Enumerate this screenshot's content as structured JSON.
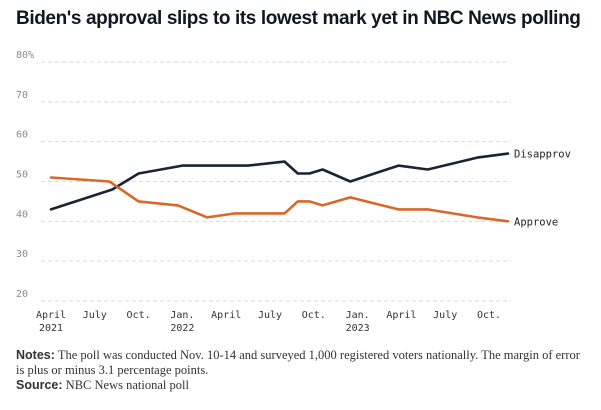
{
  "chart_data": {
    "type": "line",
    "title": "Biden's approval slips to its lowest mark yet in NBC News polling",
    "y_ticks": [
      "80%",
      "70",
      "60",
      "50",
      "40",
      "30",
      "20"
    ],
    "y_tick_values": [
      80,
      70,
      60,
      50,
      40,
      30,
      20
    ],
    "ylim": [
      20,
      80
    ],
    "x_ticks": [
      {
        "label": "April",
        "sublabel": "2021"
      },
      {
        "label": "July",
        "sublabel": ""
      },
      {
        "label": "Oct.",
        "sublabel": ""
      },
      {
        "label": "Jan.",
        "sublabel": "2022"
      },
      {
        "label": "April",
        "sublabel": ""
      },
      {
        "label": "July",
        "sublabel": ""
      },
      {
        "label": "Oct.",
        "sublabel": ""
      },
      {
        "label": "Jan.",
        "sublabel": "2023"
      },
      {
        "label": "April",
        "sublabel": ""
      },
      {
        "label": "July",
        "sublabel": ""
      },
      {
        "label": "Oct.",
        "sublabel": ""
      }
    ],
    "x_tick_months": [
      0,
      3,
      6,
      9,
      12,
      15,
      18,
      21,
      24,
      27,
      30
    ],
    "xlim": [
      0,
      31.3
    ],
    "series": [
      {
        "name": "Disapprove",
        "label": "Disapprov",
        "color": "#1a2533",
        "points": [
          {
            "x": 0,
            "y": 43
          },
          {
            "x": 4.2,
            "y": 48
          },
          {
            "x": 6,
            "y": 52
          },
          {
            "x": 9,
            "y": 54
          },
          {
            "x": 12,
            "y": 54
          },
          {
            "x": 13.5,
            "y": 54
          },
          {
            "x": 16,
            "y": 55
          },
          {
            "x": 16.9,
            "y": 52
          },
          {
            "x": 17.7,
            "y": 52
          },
          {
            "x": 18.6,
            "y": 53
          },
          {
            "x": 20.5,
            "y": 50
          },
          {
            "x": 23.8,
            "y": 54
          },
          {
            "x": 25.8,
            "y": 53
          },
          {
            "x": 29.2,
            "y": 56
          },
          {
            "x": 31.3,
            "y": 57
          }
        ]
      },
      {
        "name": "Approve",
        "label": "Approve",
        "color": "#d8672a",
        "points": [
          {
            "x": 0,
            "y": 51
          },
          {
            "x": 4,
            "y": 50
          },
          {
            "x": 6,
            "y": 45
          },
          {
            "x": 8.7,
            "y": 44
          },
          {
            "x": 10.7,
            "y": 41
          },
          {
            "x": 12.6,
            "y": 42
          },
          {
            "x": 16,
            "y": 42
          },
          {
            "x": 16.9,
            "y": 45
          },
          {
            "x": 17.7,
            "y": 45
          },
          {
            "x": 18.6,
            "y": 44
          },
          {
            "x": 20.5,
            "y": 46
          },
          {
            "x": 23.8,
            "y": 43
          },
          {
            "x": 25.8,
            "y": 43
          },
          {
            "x": 29.2,
            "y": 41
          },
          {
            "x": 31.3,
            "y": 40
          }
        ]
      }
    ],
    "grid": true
  },
  "footer": {
    "notes_label": "Notes:",
    "notes_text": "The poll was conducted Nov. 10-14 and surveyed 1,000 registered voters nationally. The margin of error is plus or minus 3.1 percentage points.",
    "source_label": "Source:",
    "source_text": "NBC News national poll"
  }
}
